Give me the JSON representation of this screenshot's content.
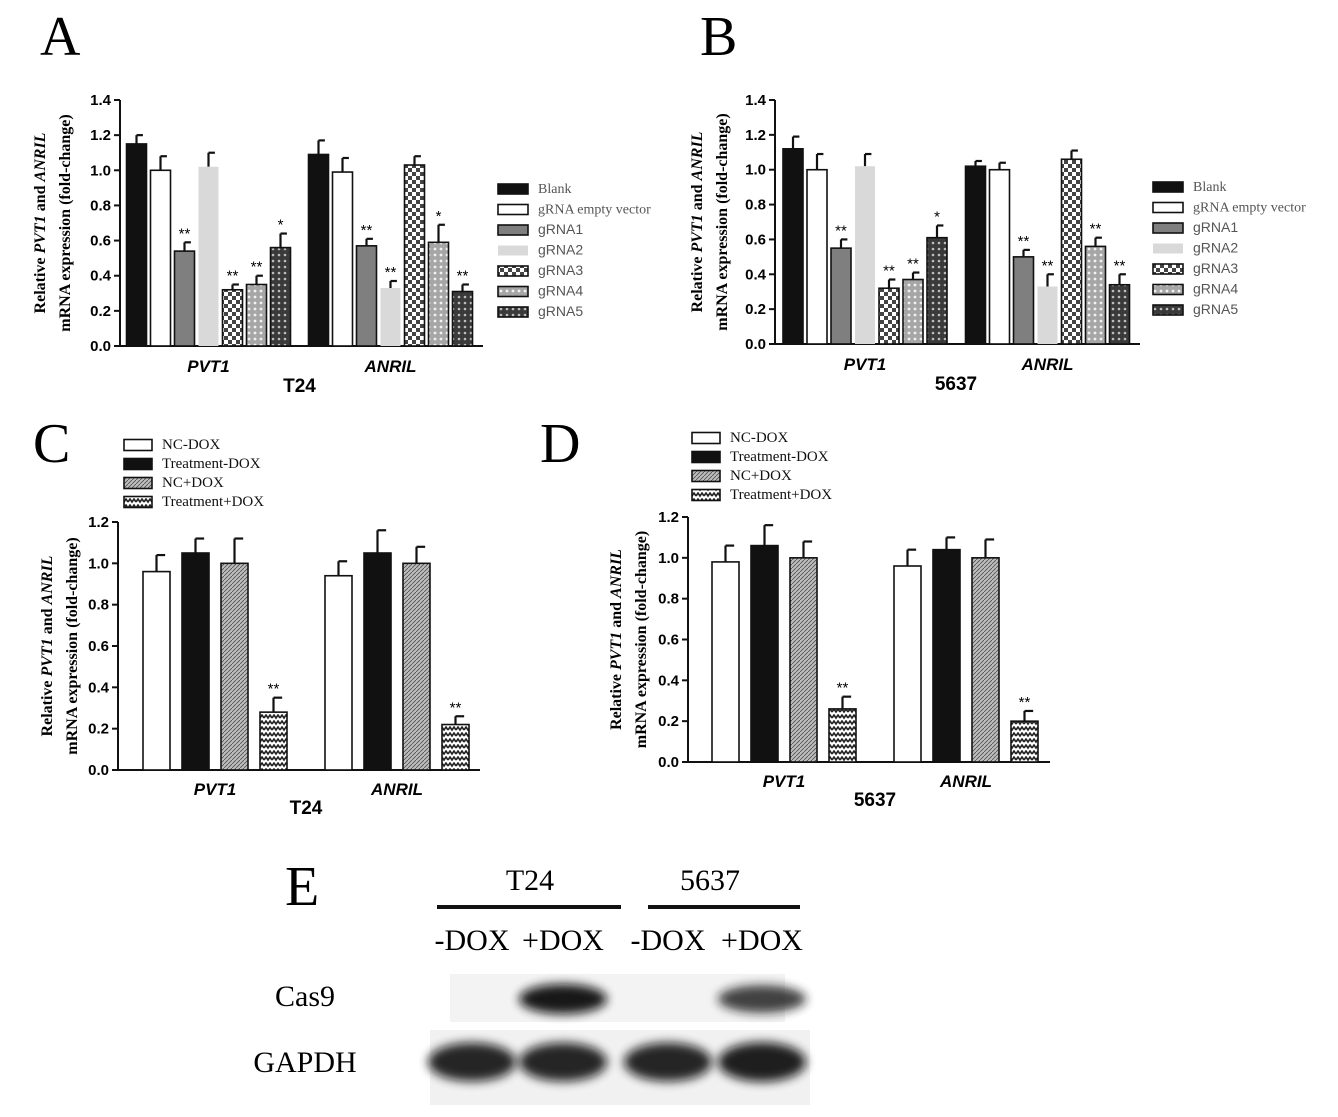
{
  "figure": {
    "panel_letters": [
      "A",
      "B",
      "C",
      "D",
      "E"
    ],
    "ylabel_line1_prefix": "Relative ",
    "ylabel_gene1": "PVT1",
    "ylabel_mid": " and ",
    "ylabel_gene2": "ANRIL",
    "ylabel_line2": "mRNA expression (fold-change)"
  },
  "colors": {
    "black": "#111111",
    "white": "#ffffff",
    "dark_gray": "#7f7f7f",
    "light_gray": "#d9d9d9",
    "mid_gray": "#9a9a9a",
    "very_dark": "#3a3a3a"
  },
  "chart_data": [
    {
      "panel": "A",
      "type": "bar",
      "title": "",
      "xlabel": "T24",
      "ylabel": "Relative PVT1 and ANRIL mRNA expression (fold-change)",
      "ylim": [
        0,
        1.4
      ],
      "yticks": [
        "0.0",
        "0.2",
        "0.4",
        "0.6",
        "0.8",
        "1.0",
        "1.2",
        "1.4"
      ],
      "categories": [
        "PVT1",
        "ANRIL"
      ],
      "legend_position": "right",
      "series": [
        {
          "name": "Blank",
          "fill": "black",
          "values": [
            1.15,
            1.09
          ],
          "errors": [
            0.05,
            0.08
          ],
          "sig": [
            "",
            ""
          ]
        },
        {
          "name": "gRNA empty vector",
          "fill": "white",
          "values": [
            1.0,
            0.99
          ],
          "errors": [
            0.08,
            0.08
          ],
          "sig": [
            "",
            ""
          ]
        },
        {
          "name": "gRNA1",
          "fill": "dark_gray",
          "values": [
            0.54,
            0.57
          ],
          "errors": [
            0.05,
            0.04
          ],
          "sig": [
            "**",
            "**"
          ]
        },
        {
          "name": "gRNA2",
          "fill": "light_gray",
          "values": [
            1.02,
            0.33
          ],
          "errors": [
            0.08,
            0.04
          ],
          "sig": [
            "",
            "**"
          ]
        },
        {
          "name": "gRNA3",
          "fill": "checker",
          "values": [
            0.32,
            1.03
          ],
          "errors": [
            0.03,
            0.05
          ],
          "sig": [
            "**",
            ""
          ]
        },
        {
          "name": "gRNA4",
          "fill": "dots_gray",
          "values": [
            0.35,
            0.59
          ],
          "errors": [
            0.05,
            0.1
          ],
          "sig": [
            "**",
            "*"
          ]
        },
        {
          "name": "gRNA5",
          "fill": "dots_dark",
          "values": [
            0.56,
            0.31
          ],
          "errors": [
            0.08,
            0.04
          ],
          "sig": [
            "*",
            "**"
          ]
        }
      ]
    },
    {
      "panel": "B",
      "type": "bar",
      "title": "",
      "xlabel": "5637",
      "ylabel": "Relative PVT1 and ANRIL mRNA expression (fold-change)",
      "ylim": [
        0,
        1.4
      ],
      "yticks": [
        "0.0",
        "0.2",
        "0.4",
        "0.6",
        "0.8",
        "1.0",
        "1.2",
        "1.4"
      ],
      "categories": [
        "PVT1",
        "ANRIL"
      ],
      "legend_position": "right",
      "series": [
        {
          "name": "Blank",
          "fill": "black",
          "values": [
            1.12,
            1.02
          ],
          "errors": [
            0.07,
            0.03
          ],
          "sig": [
            "",
            ""
          ]
        },
        {
          "name": "gRNA empty vector",
          "fill": "white",
          "values": [
            1.0,
            1.0
          ],
          "errors": [
            0.09,
            0.04
          ],
          "sig": [
            "",
            ""
          ]
        },
        {
          "name": "gRNA1",
          "fill": "dark_gray",
          "values": [
            0.55,
            0.5
          ],
          "errors": [
            0.05,
            0.04
          ],
          "sig": [
            "**",
            "**"
          ]
        },
        {
          "name": "gRNA2",
          "fill": "light_gray",
          "values": [
            1.02,
            0.33
          ],
          "errors": [
            0.07,
            0.07
          ],
          "sig": [
            "",
            "**"
          ]
        },
        {
          "name": "gRNA3",
          "fill": "checker",
          "values": [
            0.32,
            1.06
          ],
          "errors": [
            0.05,
            0.05
          ],
          "sig": [
            "**",
            ""
          ]
        },
        {
          "name": "gRNA4",
          "fill": "dots_gray",
          "values": [
            0.37,
            0.56
          ],
          "errors": [
            0.04,
            0.05
          ],
          "sig": [
            "**",
            "**"
          ]
        },
        {
          "name": "gRNA5",
          "fill": "dots_dark",
          "values": [
            0.61,
            0.34
          ],
          "errors": [
            0.07,
            0.06
          ],
          "sig": [
            "*",
            "**"
          ]
        }
      ]
    },
    {
      "panel": "C",
      "type": "bar",
      "title": "",
      "xlabel": "T24",
      "ylabel": "Relative PVT1 and ANRIL mRNA expression (fold-change)",
      "ylim": [
        0,
        1.2
      ],
      "yticks": [
        "0.0",
        "0.2",
        "0.4",
        "0.6",
        "0.8",
        "1.0",
        "1.2"
      ],
      "categories": [
        "PVT1",
        "ANRIL"
      ],
      "legend_position": "top",
      "series": [
        {
          "name": "NC-DOX",
          "fill": "white",
          "values": [
            0.96,
            0.94
          ],
          "errors": [
            0.08,
            0.07
          ],
          "sig": [
            "",
            ""
          ]
        },
        {
          "name": "Treatment-DOX",
          "fill": "black",
          "values": [
            1.05,
            1.05
          ],
          "errors": [
            0.07,
            0.11
          ],
          "sig": [
            "",
            ""
          ]
        },
        {
          "name": "NC+DOX",
          "fill": "hatch",
          "values": [
            1.0,
            1.0
          ],
          "errors": [
            0.12,
            0.08
          ],
          "sig": [
            "",
            ""
          ]
        },
        {
          "name": "Treatment+DOX",
          "fill": "zigzag",
          "values": [
            0.28,
            0.22
          ],
          "errors": [
            0.07,
            0.04
          ],
          "sig": [
            "**",
            "**"
          ]
        }
      ]
    },
    {
      "panel": "D",
      "type": "bar",
      "title": "",
      "xlabel": "5637",
      "ylabel": "Relative PVT1 and ANRIL mRNA expression (fold-change)",
      "ylim": [
        0,
        1.2
      ],
      "yticks": [
        "0.0",
        "0.2",
        "0.4",
        "0.6",
        "0.8",
        "1.0",
        "1.2"
      ],
      "categories": [
        "PVT1",
        "ANRIL"
      ],
      "legend_position": "top",
      "series": [
        {
          "name": "NC-DOX",
          "fill": "white",
          "values": [
            0.98,
            0.96
          ],
          "errors": [
            0.08,
            0.08
          ],
          "sig": [
            "",
            ""
          ]
        },
        {
          "name": "Treatment-DOX",
          "fill": "black",
          "values": [
            1.06,
            1.04
          ],
          "errors": [
            0.1,
            0.06
          ],
          "sig": [
            "",
            ""
          ]
        },
        {
          "name": "NC+DOX",
          "fill": "hatch",
          "values": [
            1.0,
            1.0
          ],
          "errors": [
            0.08,
            0.09
          ],
          "sig": [
            "",
            ""
          ]
        },
        {
          "name": "Treatment+DOX",
          "fill": "zigzag",
          "values": [
            0.26,
            0.2
          ],
          "errors": [
            0.06,
            0.05
          ],
          "sig": [
            "**",
            "**"
          ]
        }
      ]
    }
  ],
  "western_blot": {
    "panel": "E",
    "cell_lines": [
      "T24",
      "5637"
    ],
    "lanes": [
      "-DOX",
      "+DOX",
      "-DOX",
      "+DOX"
    ],
    "rows": [
      {
        "label": "Cas9",
        "intensities": [
          0,
          1.0,
          0,
          0.75
        ]
      },
      {
        "label": "GAPDH",
        "intensities": [
          0.9,
          0.9,
          0.9,
          0.95
        ]
      }
    ]
  }
}
